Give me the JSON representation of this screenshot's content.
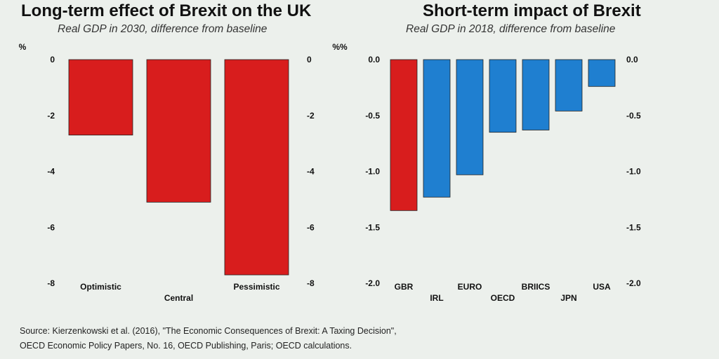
{
  "chart_data": [
    {
      "type": "bar",
      "title": "Long-term effect of Brexit on the UK",
      "subtitle": "Real GDP in 2030, difference from baseline",
      "ylabel": "%",
      "ylim": [
        -8,
        0
      ],
      "yticks": [
        "0",
        "-2",
        "-4",
        "-6",
        "-8"
      ],
      "tick_values": [
        0,
        -2,
        -4,
        -6,
        -8
      ],
      "categories": [
        "Optimistic",
        "Central",
        "Pessimistic"
      ],
      "values": [
        -2.7,
        -5.1,
        -7.7
      ],
      "colors": [
        "#d81d1d",
        "#d81d1d",
        "#d81d1d"
      ]
    },
    {
      "type": "bar",
      "title": "Short-term impact of Brexit",
      "subtitle": "Real GDP in 2018, difference from baseline",
      "ylabel": "%%",
      "ylim": [
        -2.0,
        0.0
      ],
      "yticks": [
        "0.0",
        "-0.5",
        "-1.0",
        "-1.5",
        "-2.0"
      ],
      "tick_values": [
        0.0,
        -0.5,
        -1.0,
        -1.5,
        -2.0
      ],
      "categories": [
        "GBR",
        "IRL",
        "EURO",
        "OECD",
        "BRIICS",
        "JPN",
        "USA"
      ],
      "values": [
        -1.35,
        -1.23,
        -1.03,
        -0.65,
        -0.63,
        -0.46,
        -0.24
      ],
      "colors": [
        "#d81d1d",
        "#1f7fd0",
        "#1f7fd0",
        "#1f7fd0",
        "#1f7fd0",
        "#1f7fd0",
        "#1f7fd0"
      ]
    }
  ],
  "source": {
    "line1": "Source: Kierzenkowski et al. (2016), \"The Economic Consequences of Brexit: A Taxing Decision\",",
    "line2": "OECD Economic Policy Papers, No. 16, OECD Publishing, Paris; OECD calculations."
  }
}
